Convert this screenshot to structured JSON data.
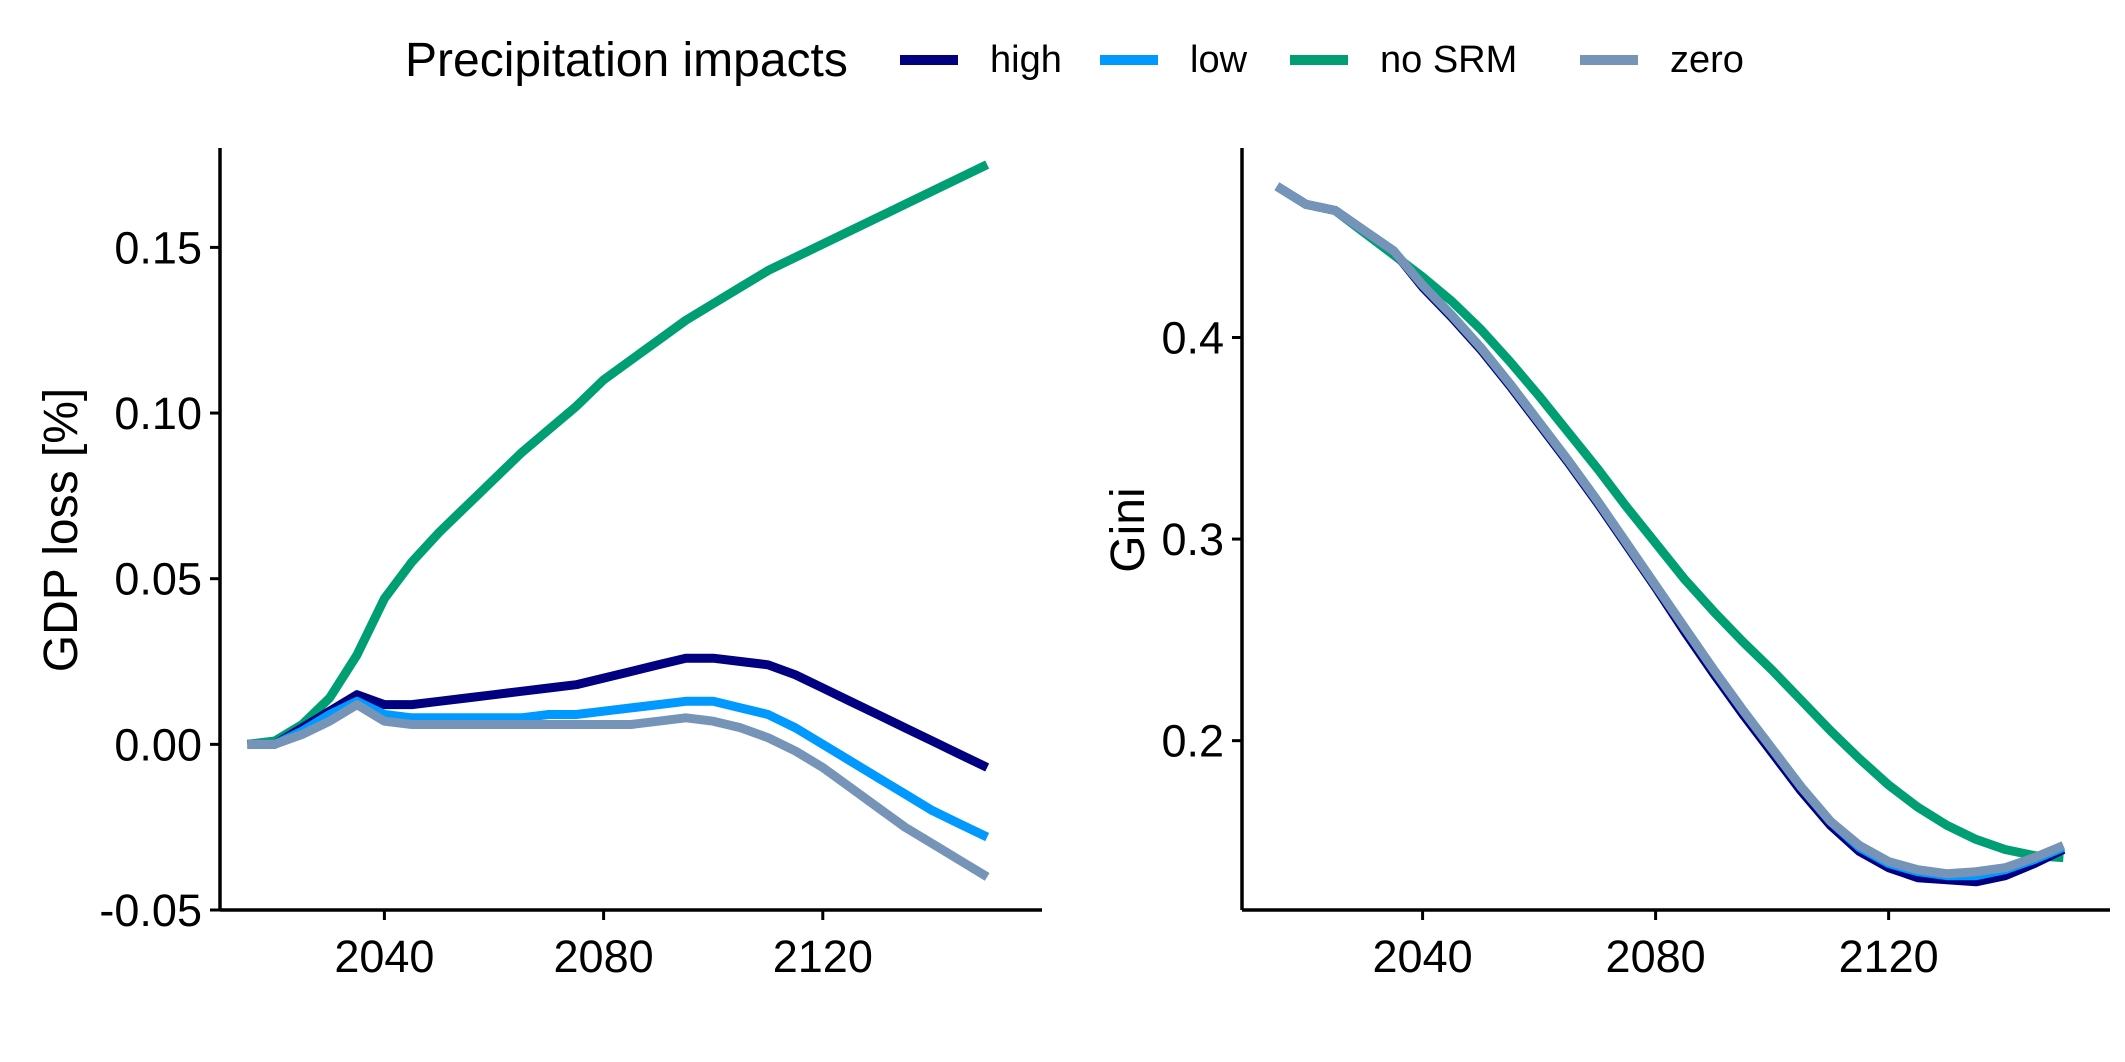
{
  "legend": {
    "title": "Precipitation impacts",
    "entries": [
      {
        "label": "high",
        "color": "#000080"
      },
      {
        "label": "low",
        "color": "#0099ff"
      },
      {
        "label": "no SRM",
        "color": "#009e73"
      },
      {
        "label": "zero",
        "color": "#7694b8"
      }
    ]
  },
  "chart_data": [
    {
      "type": "line",
      "title": "",
      "xlabel": "",
      "ylabel": "GDP loss [%]",
      "xlim": [
        2010,
        2160
      ],
      "ylim": [
        -0.05,
        0.18
      ],
      "xticks": [
        2040,
        2080,
        2120
      ],
      "yticks": [
        -0.05,
        0.0,
        0.05,
        0.1,
        0.15
      ],
      "ytick_labels": [
        "-0.05",
        "0.00",
        "0.05",
        "0.10",
        "0.15"
      ],
      "grid": false,
      "legend_position": "top",
      "x": [
        2015,
        2020,
        2025,
        2030,
        2035,
        2040,
        2045,
        2050,
        2055,
        2060,
        2065,
        2070,
        2075,
        2080,
        2085,
        2090,
        2095,
        2100,
        2105,
        2110,
        2115,
        2120,
        2125,
        2130,
        2135,
        2140,
        2145,
        2150
      ],
      "series": [
        {
          "name": "high",
          "color": "#000080",
          "values": [
            0.0,
            0.0,
            0.005,
            0.01,
            0.015,
            0.012,
            0.012,
            0.013,
            0.014,
            0.015,
            0.016,
            0.017,
            0.018,
            0.02,
            0.022,
            0.024,
            0.026,
            0.026,
            0.025,
            0.024,
            0.021,
            0.017,
            0.013,
            0.009,
            0.005,
            0.001,
            -0.003,
            -0.007
          ]
        },
        {
          "name": "low",
          "color": "#0099ff",
          "values": [
            0.0,
            0.0,
            0.004,
            0.009,
            0.013,
            0.009,
            0.008,
            0.008,
            0.008,
            0.008,
            0.008,
            0.009,
            0.009,
            0.01,
            0.011,
            0.012,
            0.013,
            0.013,
            0.011,
            0.009,
            0.005,
            0.0,
            -0.005,
            -0.01,
            -0.015,
            -0.02,
            -0.024,
            -0.028
          ]
        },
        {
          "name": "no SRM",
          "color": "#009e73",
          "values": [
            0.0,
            0.001,
            0.006,
            0.014,
            0.027,
            0.044,
            0.055,
            0.064,
            0.072,
            0.08,
            0.088,
            0.095,
            0.102,
            0.11,
            0.116,
            0.122,
            0.128,
            0.133,
            0.138,
            0.143,
            0.147,
            0.151,
            0.155,
            0.159,
            0.163,
            0.167,
            0.171,
            0.175
          ]
        },
        {
          "name": "zero",
          "color": "#7694b8",
          "values": [
            0.0,
            0.0,
            0.003,
            0.007,
            0.012,
            0.007,
            0.006,
            0.006,
            0.006,
            0.006,
            0.006,
            0.006,
            0.006,
            0.006,
            0.006,
            0.007,
            0.008,
            0.007,
            0.005,
            0.002,
            -0.002,
            -0.007,
            -0.013,
            -0.019,
            -0.025,
            -0.03,
            -0.035,
            -0.04
          ]
        }
      ]
    },
    {
      "type": "line",
      "title": "",
      "xlabel": "",
      "ylabel": "Gini",
      "xlim": [
        2009,
        2158
      ],
      "ylim": [
        0.116,
        0.494
      ],
      "xticks": [
        2040,
        2080,
        2120
      ],
      "yticks": [
        0.2,
        0.3,
        0.4
      ],
      "ytick_labels": [
        "0.2",
        "0.3",
        "0.4"
      ],
      "grid": false,
      "legend_position": "top",
      "x": [
        2015,
        2020,
        2025,
        2030,
        2035,
        2040,
        2045,
        2050,
        2055,
        2060,
        2065,
        2070,
        2075,
        2080,
        2085,
        2090,
        2095,
        2100,
        2105,
        2110,
        2115,
        2120,
        2125,
        2130,
        2135,
        2140,
        2145,
        2150
      ],
      "series": [
        {
          "name": "high",
          "color": "#000080",
          "values": [
            0.475,
            0.466,
            0.463,
            0.453,
            0.443,
            0.425,
            0.41,
            0.394,
            0.376,
            0.357,
            0.338,
            0.318,
            0.297,
            0.276,
            0.254,
            0.233,
            0.213,
            0.194,
            0.175,
            0.158,
            0.145,
            0.137,
            0.132,
            0.131,
            0.13,
            0.133,
            0.139,
            0.146
          ]
        },
        {
          "name": "low",
          "color": "#0099ff",
          "values": [
            0.475,
            0.466,
            0.463,
            0.453,
            0.443,
            0.426,
            0.411,
            0.395,
            0.377,
            0.358,
            0.339,
            0.319,
            0.298,
            0.277,
            0.256,
            0.235,
            0.215,
            0.196,
            0.177,
            0.16,
            0.147,
            0.139,
            0.135,
            0.133,
            0.133,
            0.136,
            0.141,
            0.147
          ]
        },
        {
          "name": "no SRM",
          "color": "#009e73",
          "values": [
            0.475,
            0.466,
            0.463,
            0.452,
            0.441,
            0.43,
            0.418,
            0.404,
            0.388,
            0.371,
            0.353,
            0.335,
            0.316,
            0.298,
            0.28,
            0.264,
            0.249,
            0.235,
            0.22,
            0.205,
            0.191,
            0.178,
            0.167,
            0.158,
            0.151,
            0.146,
            0.143,
            0.142
          ]
        },
        {
          "name": "zero",
          "color": "#7694b8",
          "values": [
            0.475,
            0.466,
            0.463,
            0.453,
            0.443,
            0.426,
            0.411,
            0.395,
            0.377,
            0.358,
            0.339,
            0.319,
            0.298,
            0.277,
            0.256,
            0.235,
            0.215,
            0.196,
            0.177,
            0.16,
            0.148,
            0.14,
            0.136,
            0.134,
            0.135,
            0.137,
            0.142,
            0.148
          ]
        }
      ]
    }
  ]
}
